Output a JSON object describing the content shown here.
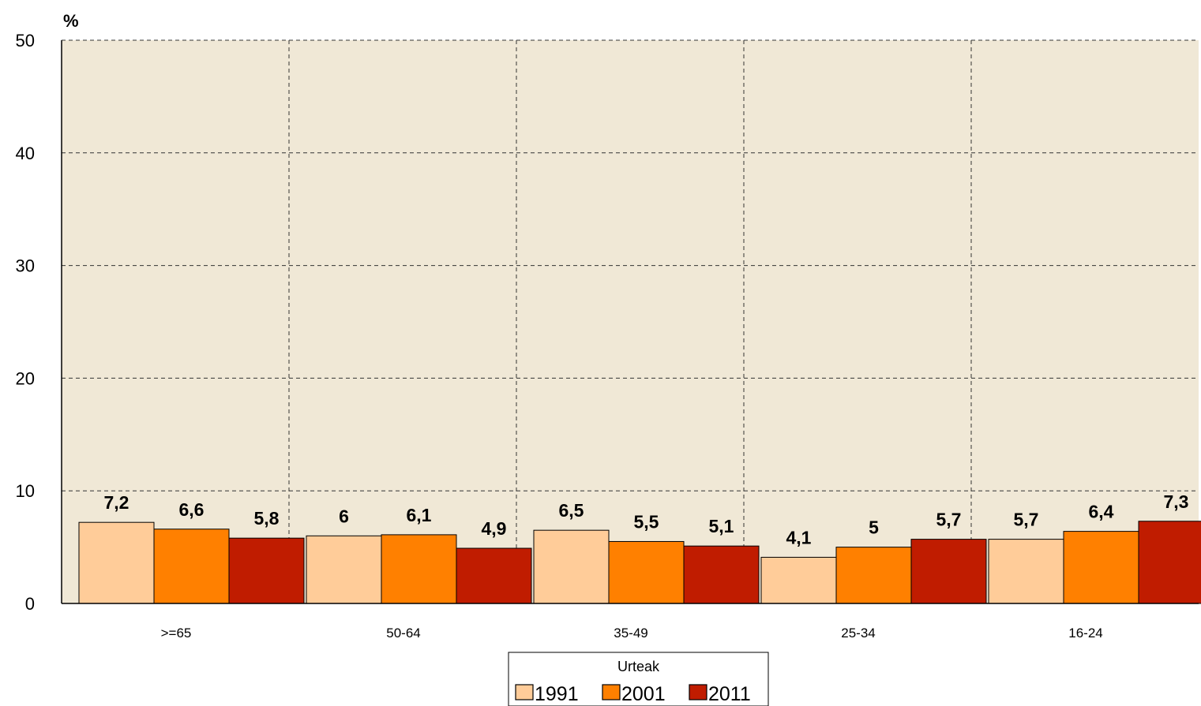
{
  "chart_data": {
    "type": "bar",
    "ylabel": "%",
    "ylim": [
      0,
      50
    ],
    "yticks": [
      0,
      10,
      20,
      30,
      40,
      50
    ],
    "grid": true,
    "categories": [
      ">=65",
      "50-64",
      "35-49",
      "25-34",
      "16-24"
    ],
    "series": [
      {
        "name": "1991",
        "color": "#FFCC99",
        "values": [
          7.2,
          6,
          6.5,
          4.1,
          5.7
        ],
        "labels": [
          "7,2",
          "6",
          "6,5",
          "4,1",
          "5,7"
        ]
      },
      {
        "name": "2001",
        "color": "#FF8000",
        "values": [
          6.6,
          6.1,
          5.5,
          5,
          6.4
        ],
        "labels": [
          "6,6",
          "6,1",
          "5,5",
          "5",
          "6,4"
        ]
      },
      {
        "name": "2011",
        "color": "#C01C00",
        "values": [
          5.8,
          4.9,
          5.1,
          5.7,
          7.3
        ],
        "labels": [
          "5,8",
          "4,9",
          "5,1",
          "5,7",
          "7,3"
        ]
      }
    ],
    "legend": {
      "title": "Urteak",
      "position": "bottom-center"
    },
    "plot_background": "#F0E8D6"
  }
}
